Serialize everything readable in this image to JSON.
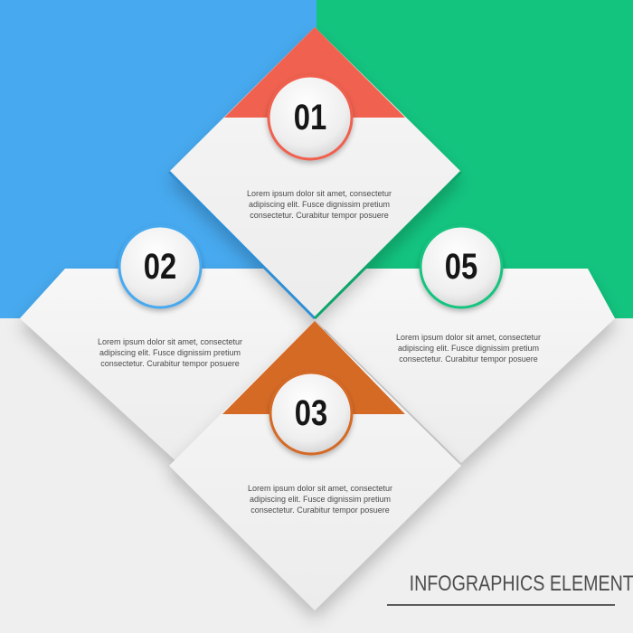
{
  "colors": {
    "blue": "#47a9ef",
    "green": "#13c47f",
    "red": "#f0614f",
    "orange": "#d56a25",
    "panel": "#f3f3f3",
    "background": "#efefef"
  },
  "steps": [
    {
      "number": "01",
      "text_lines": [
        "Lorem ipsum dolor sit amet, consectetur",
        "adipiscing elit. Fusce dignissim pretium",
        "consectetur. Curabitur tempor posuere"
      ],
      "ring_color": "red"
    },
    {
      "number": "02",
      "text_lines": [
        "Lorem ipsum dolor sit amet, consectetur",
        "adipiscing elit. Fusce dignissim pretium",
        "consectetur. Curabitur tempor posuere"
      ],
      "ring_color": "blue"
    },
    {
      "number": "03",
      "text_lines": [
        "Lorem ipsum dolor sit amet, consectetur",
        "adipiscing elit. Fusce dignissim pretium",
        "consectetur. Curabitur tempor posuere"
      ],
      "ring_color": "orange"
    },
    {
      "number": "05",
      "text_lines": [
        "Lorem ipsum dolor sit amet, consectetur",
        "adipiscing elit. Fusce dignissim pretium",
        "consectetur. Curabitur tempor posuere"
      ],
      "ring_color": "green"
    }
  ],
  "footer": {
    "title": "INFOGRAPHICS ELEMENTS"
  }
}
